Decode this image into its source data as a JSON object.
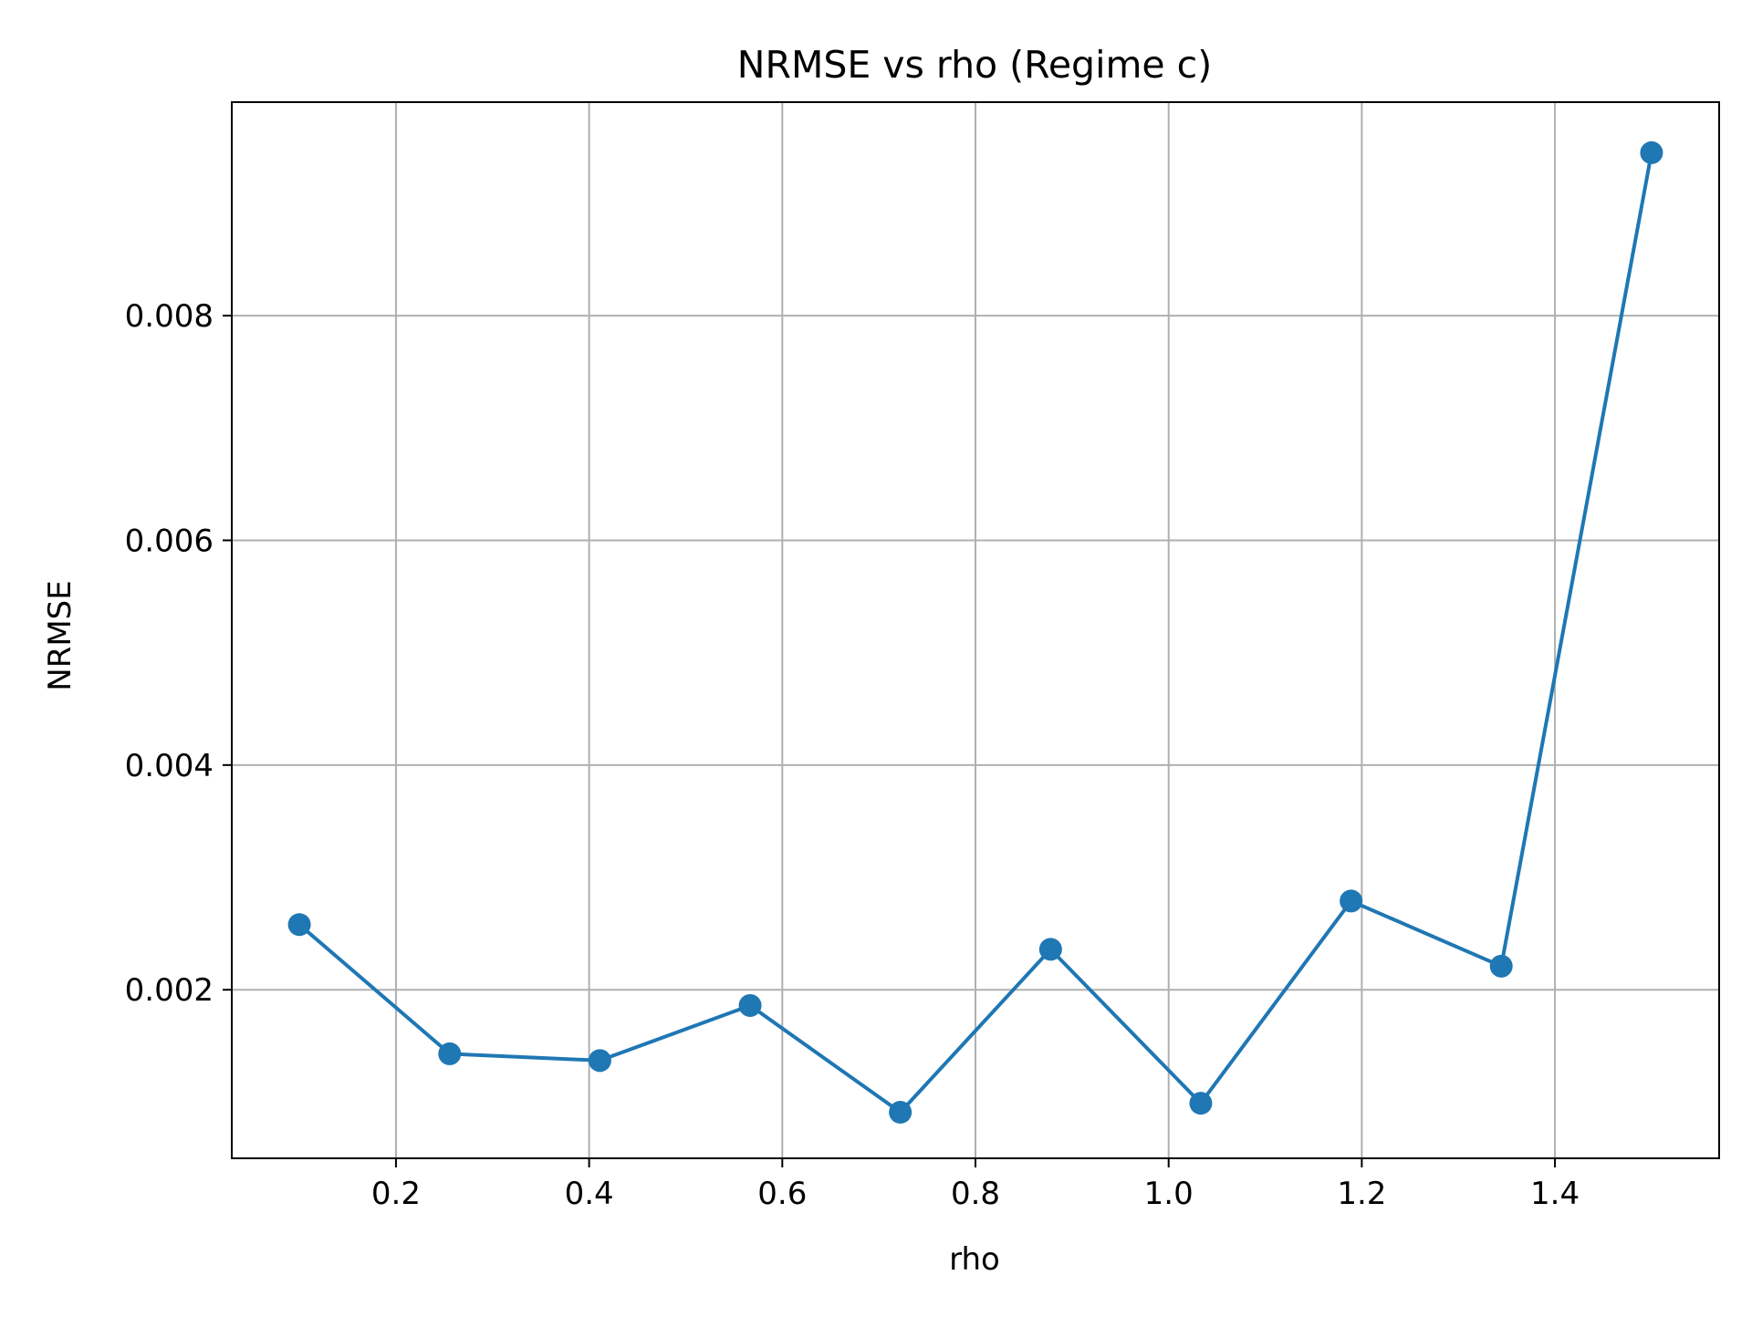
{
  "chart_data": {
    "type": "line",
    "title": "NRMSE vs rho (Regime c)",
    "xlabel": "rho",
    "ylabel": "NRMSE",
    "xlim": [
      0.03,
      1.57
    ],
    "ylim": [
      0.0005,
      0.0099
    ],
    "xticks": [
      0.2,
      0.4,
      0.6,
      0.8,
      1.0,
      1.2,
      1.4
    ],
    "xtick_labels": [
      "0.2",
      "0.4",
      "0.6",
      "0.8",
      "1.0",
      "1.2",
      "1.4"
    ],
    "yticks": [
      0.002,
      0.004,
      0.006,
      0.008
    ],
    "ytick_labels": [
      "0.002",
      "0.004",
      "0.006",
      "0.008"
    ],
    "grid": true,
    "colors": {
      "series": "#1f77b4",
      "grid": "#b0b0b0",
      "axes": "#000000"
    },
    "series": [
      {
        "x": [
          0.1,
          0.2556,
          0.4111,
          0.5667,
          0.7222,
          0.8778,
          1.0333,
          1.1889,
          1.3444,
          1.5
        ],
        "y": [
          0.00258,
          0.00143,
          0.00137,
          0.00186,
          0.00091,
          0.00236,
          0.00099,
          0.00279,
          0.00221,
          0.00945
        ],
        "marker": "circle"
      }
    ]
  }
}
